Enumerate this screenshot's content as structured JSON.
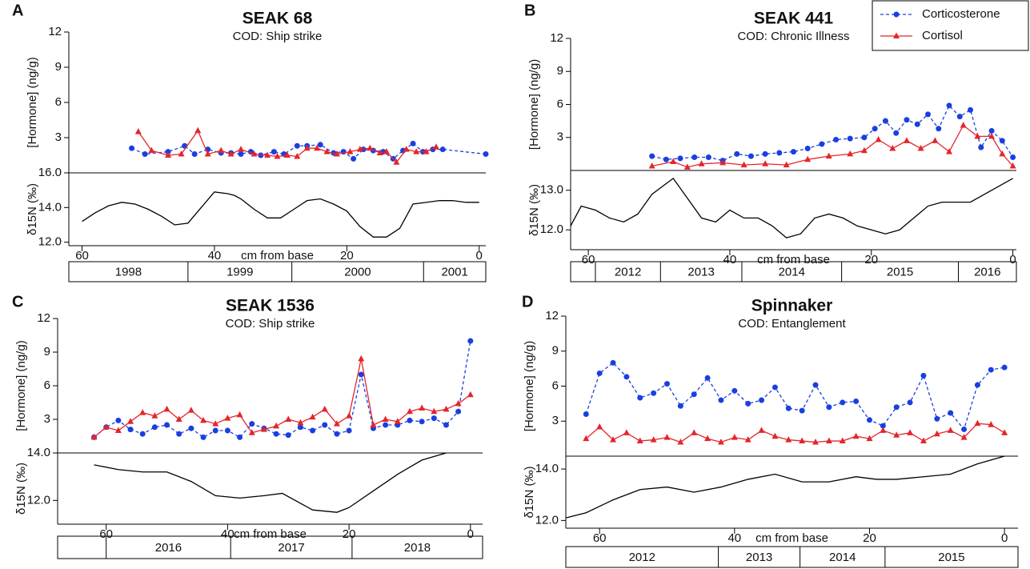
{
  "chart_data": [
    {
      "type": "line",
      "letter": "A",
      "title": "SEAK 68",
      "subtitle": "COD: Ship strike",
      "ylabel": "[Hormone] (ng/g)",
      "xlabel": "cm from base",
      "xlim": [
        62,
        -1
      ],
      "xticks": [
        60,
        40,
        20,
        0
      ],
      "ylim": [
        0,
        12
      ],
      "yticks": [
        3,
        6,
        9,
        12
      ],
      "series": [
        {
          "name": "Corticosterone",
          "color": "#1a3fe0",
          "marker": "circle",
          "linestyle": "dashed",
          "x": [
            52.5,
            50.5,
            47,
            44.5,
            43,
            41,
            39,
            37.5,
            36,
            34.5,
            33,
            31,
            29.5,
            27.5,
            26,
            24,
            22,
            20.5,
            19,
            17.5,
            16,
            14.5,
            13,
            11.5,
            10,
            8.5,
            7,
            5.5,
            -1
          ],
          "values": [
            2.1,
            1.6,
            1.8,
            2.3,
            1.6,
            2.0,
            1.7,
            1.7,
            1.6,
            1.8,
            1.5,
            1.8,
            1.6,
            2.3,
            2.3,
            2.4,
            1.7,
            1.8,
            1.2,
            2.0,
            1.9,
            1.8,
            1.2,
            1.9,
            2.5,
            1.8,
            2.0,
            2.0,
            1.6
          ]
        },
        {
          "name": "Cortisol",
          "color": "#e3262b",
          "marker": "triangle",
          "linestyle": "solid",
          "x": [
            51.5,
            49.5,
            47,
            45,
            42.5,
            41,
            39,
            37.5,
            36,
            34,
            32,
            30.5,
            29,
            27.5,
            26,
            24.5,
            23,
            21.5,
            19.5,
            18,
            16.5,
            15,
            14,
            12.5,
            11,
            9.5,
            8,
            6.5
          ],
          "values": [
            3.5,
            1.9,
            1.5,
            1.6,
            3.6,
            1.6,
            1.9,
            1.6,
            2.0,
            1.6,
            1.5,
            1.4,
            1.5,
            1.4,
            2.1,
            2.1,
            1.8,
            1.6,
            1.8,
            2.0,
            2.1,
            1.7,
            1.8,
            0.9,
            2.0,
            1.8,
            1.8,
            2.2
          ]
        }
      ],
      "isotope": {
        "ylabel": "δ15N (‰)",
        "color": "#000000",
        "ylim": [
          11.8,
          16
        ],
        "yticks": [
          {
            "value": 12,
            "label": "12.0"
          },
          {
            "value": 14,
            "label": "14.0"
          },
          {
            "value": 16,
            "label": "16.0"
          }
        ],
        "x": [
          60,
          58,
          56,
          54,
          52,
          50,
          48,
          46,
          44,
          42,
          40,
          38,
          37,
          36,
          34,
          32,
          30,
          28,
          26,
          24,
          22,
          20,
          18,
          16,
          14,
          12,
          11,
          10,
          8,
          6,
          4,
          2,
          0
        ],
        "values": [
          13.2,
          13.7,
          14.1,
          14.3,
          14.2,
          13.9,
          13.5,
          13.0,
          13.1,
          14.0,
          14.9,
          14.8,
          14.7,
          14.5,
          13.9,
          13.4,
          13.4,
          13.9,
          14.4,
          14.5,
          14.2,
          13.8,
          12.9,
          12.3,
          12.3,
          12.8,
          13.5,
          14.2,
          14.3,
          14.4,
          14.4,
          14.3,
          14.3
        ]
      },
      "years": {
        "labels": [
          "1998",
          "1999",
          "2000",
          "2001"
        ],
        "bounds": [
          62,
          44,
          28.3,
          8.4,
          -1
        ]
      }
    },
    {
      "type": "line",
      "letter": "B",
      "title": "SEAK 441",
      "subtitle": "COD: Chronic Illness",
      "ylabel": "[Hormone] (ng/g)",
      "xlabel": "cm from base",
      "legend": "upper right",
      "xlim": [
        62.5,
        -0.5
      ],
      "xticks": [
        60,
        40,
        20,
        0
      ],
      "ylim": [
        0,
        12
      ],
      "yticks": [
        3,
        6,
        9,
        12
      ],
      "series": [
        {
          "name": "Corticosterone",
          "color": "#1a3fe0",
          "marker": "circle",
          "linestyle": "dashed",
          "x": [
            51,
            49,
            47,
            45,
            43,
            41,
            39,
            37,
            35,
            33,
            31,
            29,
            27,
            25,
            23,
            21,
            19.5,
            18,
            16.5,
            15,
            13.5,
            12,
            10.5,
            9,
            7.5,
            6,
            4.5,
            3,
            1.5,
            0
          ],
          "values": [
            1.3,
            1.0,
            1.1,
            1.2,
            1.2,
            0.9,
            1.5,
            1.3,
            1.5,
            1.6,
            1.7,
            2.0,
            2.4,
            2.8,
            2.9,
            3.0,
            3.8,
            4.5,
            3.4,
            4.6,
            4.2,
            5.1,
            3.8,
            5.9,
            4.9,
            5.5,
            2.1,
            3.6,
            2.7,
            1.2
          ]
        },
        {
          "name": "Cortisol",
          "color": "#e3262b",
          "marker": "triangle",
          "linestyle": "solid",
          "x": [
            51,
            48,
            46,
            44,
            41,
            38,
            35,
            32,
            29,
            26,
            23,
            21,
            19,
            17,
            15,
            13,
            11,
            9,
            7,
            5,
            3,
            1.5,
            0
          ],
          "values": [
            0.4,
            0.8,
            0.3,
            0.6,
            0.7,
            0.5,
            0.6,
            0.5,
            1.0,
            1.3,
            1.5,
            1.8,
            2.8,
            2.0,
            2.7,
            2.0,
            2.7,
            1.7,
            4.1,
            3.1,
            3.1,
            1.5,
            0.4
          ]
        }
      ],
      "isotope": {
        "ylabel": "δ15N (‰)",
        "color": "#000000",
        "ylim": [
          11.5,
          13.5
        ],
        "yticks": [
          {
            "value": 12,
            "label": "12.0"
          },
          {
            "value": 13,
            "label": "13.0"
          }
        ],
        "x": [
          62.5,
          61,
          59,
          57,
          55,
          53,
          51,
          48,
          46,
          44,
          42,
          40,
          38,
          36,
          34,
          32,
          30,
          28,
          26,
          24,
          22,
          20,
          18,
          16,
          14,
          12,
          10,
          8,
          6,
          4,
          2,
          0
        ],
        "values": [
          12.1,
          12.6,
          12.5,
          12.3,
          12.2,
          12.4,
          12.9,
          13.3,
          12.8,
          12.3,
          12.2,
          12.5,
          12.3,
          12.3,
          12.1,
          11.8,
          11.9,
          12.3,
          12.4,
          12.3,
          12.1,
          12.0,
          11.9,
          12.0,
          12.3,
          12.6,
          12.7,
          12.7,
          12.7,
          12.9,
          13.1,
          13.3
        ]
      },
      "years": {
        "labels": [
          null,
          "2012",
          "2013",
          "2014",
          "2015",
          "2016"
        ],
        "bounds": [
          62.5,
          59,
          49.8,
          38.3,
          24.2,
          7.7,
          -0.5
        ]
      }
    },
    {
      "type": "line",
      "letter": "C",
      "title": "SEAK 1536",
      "subtitle": "COD: Ship strike",
      "ylabel": "[Hormone] (ng/g)",
      "xlabel": "cm from base",
      "xlim": [
        68,
        -2
      ],
      "xticks": [
        60,
        40,
        20,
        0
      ],
      "ylim": [
        0,
        12
      ],
      "yticks": [
        3,
        6,
        9,
        12
      ],
      "series": [
        {
          "name": "Corticosterone",
          "color": "#1a3fe0",
          "marker": "circle",
          "linestyle": "dashed",
          "x": [
            62,
            60,
            58,
            56,
            54,
            52,
            50,
            48,
            46,
            44,
            42,
            40,
            38,
            36,
            34,
            32,
            30,
            28,
            26,
            24,
            22,
            20,
            18,
            16,
            14,
            12,
            10,
            8,
            6,
            4,
            2,
            0
          ],
          "values": [
            1.4,
            2.3,
            2.9,
            2.1,
            1.7,
            2.3,
            2.5,
            1.7,
            2.2,
            1.4,
            2.0,
            2.0,
            1.4,
            2.6,
            2.2,
            1.7,
            1.6,
            2.3,
            2.0,
            2.5,
            1.7,
            2.0,
            7.0,
            2.2,
            2.5,
            2.5,
            2.9,
            2.8,
            3.1,
            2.5,
            3.7,
            10.0
          ]
        },
        {
          "name": "Cortisol",
          "color": "#e3262b",
          "marker": "triangle",
          "linestyle": "solid",
          "x": [
            62,
            60,
            58,
            56,
            54,
            52,
            50,
            48,
            46,
            44,
            42,
            40,
            38,
            36,
            34,
            32,
            30,
            28,
            26,
            24,
            22,
            20,
            18,
            16,
            14,
            12,
            10,
            8,
            6,
            4,
            2,
            0
          ],
          "values": [
            1.4,
            2.3,
            2.0,
            2.8,
            3.6,
            3.3,
            3.9,
            3.0,
            3.8,
            2.9,
            2.6,
            3.1,
            3.4,
            1.8,
            2.1,
            2.4,
            3.0,
            2.7,
            3.2,
            3.9,
            2.6,
            3.3,
            8.4,
            2.5,
            3.0,
            2.8,
            3.7,
            4.0,
            3.7,
            3.9,
            4.4,
            5.2
          ]
        }
      ],
      "isotope": {
        "ylabel": "δ15N (‰)",
        "color": "#000000",
        "ylim": [
          11,
          14
        ],
        "yticks": [
          {
            "value": 12,
            "label": "12.0"
          },
          {
            "value": 14,
            "label": "14.0"
          }
        ],
        "x": [
          62,
          58,
          54,
          50,
          46,
          42,
          38,
          34,
          31,
          26,
          22,
          20,
          16,
          12,
          8,
          4
        ],
        "values": [
          13.5,
          13.3,
          13.2,
          13.2,
          12.8,
          12.2,
          12.1,
          12.2,
          12.3,
          11.6,
          11.5,
          11.7,
          12.4,
          13.1,
          13.7,
          14.0
        ]
      },
      "years": {
        "labels": [
          null,
          "2016",
          "2017",
          "2018"
        ],
        "bounds": [
          68,
          60,
          39.5,
          19.5,
          -2
        ]
      }
    },
    {
      "type": "line",
      "letter": "D",
      "title": "Spinnaker",
      "subtitle": "COD: Entanglement",
      "ylabel": "[Hormone] (ng/g)",
      "xlabel": "cm from base",
      "xlim": [
        65,
        -2
      ],
      "xticks": [
        60,
        40,
        20,
        0
      ],
      "ylim": [
        0,
        12
      ],
      "yticks": [
        3,
        6,
        9,
        12
      ],
      "series": [
        {
          "name": "Corticosterone",
          "color": "#1a3fe0",
          "marker": "circle",
          "linestyle": "dashed",
          "x": [
            62,
            60,
            58,
            56,
            54,
            52,
            50,
            48,
            46,
            44,
            42,
            40,
            38,
            36,
            34,
            32,
            30,
            28,
            26,
            24,
            22,
            20,
            18,
            16,
            14,
            12,
            10,
            8,
            6,
            4,
            2,
            0
          ],
          "values": [
            3.6,
            7.1,
            8.0,
            6.8,
            5.0,
            5.4,
            6.2,
            4.3,
            5.3,
            6.7,
            4.8,
            5.6,
            4.5,
            4.8,
            5.9,
            4.1,
            3.9,
            6.1,
            4.2,
            4.6,
            4.7,
            3.1,
            2.6,
            4.2,
            4.6,
            6.9,
            3.2,
            3.7,
            2.3,
            6.1,
            7.4,
            7.6
          ]
        },
        {
          "name": "Cortisol",
          "color": "#e3262b",
          "marker": "triangle",
          "linestyle": "solid",
          "x": [
            62,
            60,
            58,
            56,
            54,
            52,
            50,
            48,
            46,
            44,
            42,
            40,
            38,
            36,
            34,
            32,
            30,
            28,
            26,
            24,
            22,
            20,
            18,
            16,
            14,
            12,
            10,
            8,
            6,
            4,
            2,
            0
          ],
          "values": [
            1.5,
            2.5,
            1.4,
            2.0,
            1.3,
            1.4,
            1.6,
            1.2,
            2.0,
            1.5,
            1.2,
            1.6,
            1.4,
            2.2,
            1.7,
            1.4,
            1.3,
            1.2,
            1.3,
            1.3,
            1.7,
            1.5,
            2.2,
            1.8,
            2.0,
            1.3,
            1.9,
            2.2,
            1.6,
            2.8,
            2.7,
            2.0
          ]
        }
      ],
      "isotope": {
        "ylabel": "δ15N (‰)",
        "color": "#000000",
        "ylim": [
          11.7,
          14.5
        ],
        "yticks": [
          {
            "value": 12,
            "label": "12.0"
          },
          {
            "value": 14,
            "label": "14.0"
          }
        ],
        "x": [
          65,
          62,
          58,
          54,
          50,
          46,
          42,
          38,
          34,
          30,
          26,
          22,
          19,
          16,
          12,
          8,
          4,
          0
        ],
        "values": [
          12.1,
          12.3,
          12.8,
          13.2,
          13.3,
          13.1,
          13.3,
          13.6,
          13.8,
          13.5,
          13.5,
          13.7,
          13.6,
          13.6,
          13.7,
          13.8,
          14.2,
          14.5
        ]
      },
      "years": {
        "labels": [
          "2012",
          "2013",
          "2014",
          "2015"
        ],
        "bounds": [
          65,
          42.4,
          30.3,
          17.7,
          -2
        ]
      }
    }
  ]
}
